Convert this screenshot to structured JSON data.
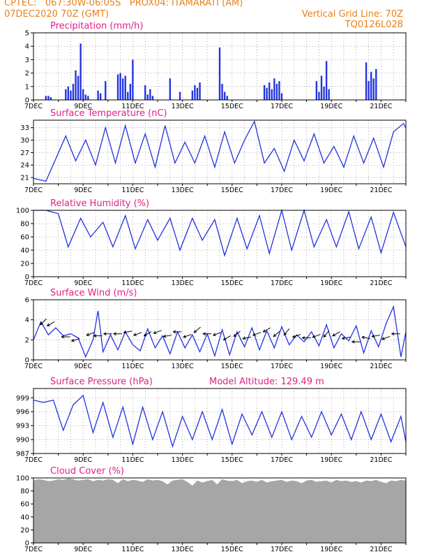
{
  "header": {
    "line1": "CPTEC:   067:30W-06:05S   PROX04: ITAMARATI (AM)",
    "line2_left": "07DEC2020 70Z (GMT)",
    "line2_right": "Vertical Grid Line: 70Z",
    "line3_right": "TQ0126L028"
  },
  "colors": {
    "header": "#e8801a",
    "title": "#e0208a",
    "series": "#2233dd",
    "cloud": "#a6a6a6"
  },
  "x_axis": {
    "labels": [
      "7DEC",
      "9DEC",
      "11DEC",
      "13DEC",
      "15DEC",
      "17DEC",
      "19DEC",
      "21DEC"
    ],
    "start_day": 7,
    "end_day": 22
  },
  "chart_data": [
    {
      "id": "precip",
      "type": "bar",
      "title": "Precipitation (mm/h)",
      "ylim": [
        0,
        5
      ],
      "yticks": [
        "0",
        "1",
        "2",
        "3",
        "4",
        "5"
      ],
      "x": [
        7.5,
        7.6,
        7.7,
        8.3,
        8.4,
        8.5,
        8.6,
        8.7,
        8.8,
        8.9,
        9.0,
        9.1,
        9.2,
        9.6,
        9.7,
        9.9,
        10.4,
        10.5,
        10.6,
        10.7,
        10.8,
        10.9,
        11.0,
        11.5,
        11.6,
        11.7,
        11.8,
        12.5,
        12.9,
        13.4,
        13.5,
        13.6,
        13.7,
        14.5,
        14.6,
        14.7,
        14.8,
        16.3,
        16.4,
        16.5,
        16.6,
        16.7,
        16.8,
        16.9,
        17.0,
        18.4,
        18.5,
        18.6,
        18.7,
        18.8,
        18.9,
        20.4,
        20.5,
        20.6,
        20.7,
        20.8
      ],
      "values": [
        0.3,
        0.3,
        0.2,
        0.8,
        1.0,
        0.7,
        1.2,
        2.2,
        1.8,
        4.2,
        0.8,
        0.4,
        0.3,
        0.7,
        0.5,
        1.4,
        1.9,
        2.0,
        1.6,
        1.8,
        0.6,
        1.2,
        3.0,
        1.1,
        0.4,
        0.8,
        0.3,
        1.6,
        0.6,
        0.7,
        1.1,
        0.9,
        1.3,
        3.9,
        1.2,
        0.6,
        0.3,
        1.1,
        0.9,
        1.3,
        0.8,
        1.6,
        1.2,
        1.4,
        0.5,
        1.4,
        0.6,
        1.8,
        1.0,
        2.9,
        0.8,
        2.8,
        1.4,
        2.1,
        1.6,
        2.3
      ]
    },
    {
      "id": "temp",
      "type": "line",
      "title": "Surface Temperature (nC)",
      "ylim": [
        19.5,
        34.8
      ],
      "yticks": [
        "21",
        "24",
        "27",
        "30",
        "33"
      ],
      "ytick_values": [
        21,
        24,
        27,
        30,
        33
      ],
      "x": [
        7.0,
        7.5,
        7.9,
        8.3,
        8.7,
        9.1,
        9.5,
        9.9,
        10.3,
        10.7,
        11.1,
        11.5,
        11.9,
        12.3,
        12.7,
        13.1,
        13.5,
        13.9,
        14.3,
        14.7,
        15.1,
        15.5,
        15.9,
        16.3,
        16.7,
        17.1,
        17.5,
        17.9,
        18.3,
        18.7,
        19.1,
        19.5,
        19.9,
        20.3,
        20.7,
        21.1,
        21.5,
        21.9,
        22.0
      ],
      "values": [
        20.8,
        20.1,
        25.5,
        31.0,
        25.0,
        30.0,
        24.0,
        33.0,
        24.5,
        33.5,
        24.5,
        31.5,
        23.5,
        33.5,
        24.5,
        29.5,
        24.5,
        31.0,
        23.5,
        32.0,
        24.5,
        30.0,
        34.5,
        24.5,
        28.0,
        22.5,
        30.0,
        25.0,
        31.5,
        24.5,
        28.5,
        23.5,
        31.0,
        24.5,
        30.5,
        23.5,
        32.0,
        34.0,
        33.0
      ]
    },
    {
      "id": "rh",
      "type": "line",
      "title": "Relative Humidity (%)",
      "ylim": [
        0,
        100
      ],
      "yticks": [
        "0",
        "20",
        "40",
        "60",
        "80",
        "100"
      ],
      "ytick_values": [
        0,
        20,
        40,
        60,
        80,
        100
      ],
      "x": [
        7.0,
        7.5,
        8.0,
        8.4,
        8.9,
        9.3,
        9.8,
        10.2,
        10.7,
        11.1,
        11.6,
        12.0,
        12.5,
        12.9,
        13.4,
        13.8,
        14.3,
        14.7,
        15.2,
        15.6,
        16.1,
        16.5,
        17.0,
        17.4,
        17.9,
        18.3,
        18.8,
        19.2,
        19.7,
        20.1,
        20.6,
        21.0,
        21.5,
        22.0
      ],
      "values": [
        100,
        100,
        95,
        45,
        88,
        60,
        82,
        45,
        92,
        42,
        86,
        55,
        88,
        40,
        88,
        55,
        86,
        32,
        88,
        42,
        92,
        35,
        100,
        40,
        100,
        45,
        86,
        45,
        98,
        42,
        90,
        36,
        97,
        45
      ]
    },
    {
      "id": "wind",
      "type": "line",
      "title": "Surface Wind (m/s)",
      "ylim": [
        0,
        6
      ],
      "yticks": [
        "0",
        "2",
        "4",
        "6"
      ],
      "ytick_values": [
        0,
        2,
        4,
        6
      ],
      "x": [
        7.0,
        7.3,
        7.6,
        7.9,
        8.2,
        8.5,
        8.8,
        9.1,
        9.4,
        9.6,
        9.8,
        10.1,
        10.4,
        10.7,
        11.0,
        11.3,
        11.6,
        11.9,
        12.2,
        12.5,
        12.8,
        13.1,
        13.4,
        13.7,
        14.0,
        14.3,
        14.6,
        14.9,
        15.2,
        15.5,
        15.8,
        16.1,
        16.4,
        16.7,
        17.0,
        17.3,
        17.6,
        17.9,
        18.2,
        18.5,
        18.8,
        19.1,
        19.4,
        19.7,
        20.0,
        20.3,
        20.6,
        20.9,
        21.2,
        21.5,
        21.8,
        22.0
      ],
      "values": [
        2.0,
        3.8,
        2.5,
        3.2,
        2.4,
        2.6,
        2.2,
        0.3,
        2.0,
        4.9,
        0.8,
        2.5,
        1.0,
        2.8,
        1.5,
        0.9,
        3.1,
        1.2,
        2.4,
        0.6,
        2.8,
        1.2,
        2.5,
        0.8,
        2.6,
        0.4,
        3.0,
        0.5,
        2.8,
        1.3,
        3.2,
        1.0,
        2.9,
        1.2,
        3.3,
        1.5,
        2.5,
        1.8,
        2.8,
        1.4,
        3.5,
        1.2,
        2.6,
        1.9,
        3.4,
        0.7,
        2.9,
        1.3,
        3.6,
        5.3,
        0.3,
        2.8
      ],
      "arrows_x": [
        7.4,
        7.7,
        8.3,
        8.7,
        9.3,
        9.6,
        10.0,
        10.4,
        10.8,
        11.2,
        11.6,
        12.0,
        12.4,
        12.8,
        13.2,
        13.6,
        14.0,
        14.4,
        14.8,
        15.2,
        15.6,
        16.0,
        16.4,
        16.8,
        17.2,
        17.6,
        18.0,
        18.4,
        18.8,
        19.2,
        19.6,
        20.0,
        20.4,
        20.8,
        21.2,
        21.6
      ],
      "arrows_y": [
        3.8,
        3.6,
        2.3,
        2.0,
        2.6,
        2.4,
        2.6,
        2.6,
        2.8,
        2.6,
        2.6,
        2.8,
        2.4,
        2.8,
        2.4,
        3.0,
        2.6,
        2.6,
        2.2,
        2.6,
        2.2,
        2.6,
        3.0,
        2.6,
        2.8,
        2.4,
        2.2,
        2.4,
        2.6,
        2.6,
        2.2,
        1.8,
        2.2,
        2.4,
        2.2,
        2.6
      ],
      "arrows_dir_deg": [
        225,
        210,
        180,
        195,
        200,
        180,
        180,
        180,
        190,
        200,
        210,
        200,
        190,
        180,
        200,
        220,
        180,
        200,
        210,
        220,
        190,
        200,
        210,
        220,
        230,
        200,
        180,
        200,
        230,
        210,
        190,
        180,
        170,
        190,
        200,
        180
      ]
    },
    {
      "id": "press",
      "type": "line",
      "title": "Surface Pressure (hPa)",
      "subtitle": "Model Altitude: 129.49 m",
      "ylim": [
        987,
        1001
      ],
      "yticks": [
        "987",
        "990",
        "993",
        "996",
        "999"
      ],
      "ytick_values": [
        987,
        990,
        993,
        996,
        999
      ],
      "x": [
        7.0,
        7.4,
        7.8,
        8.2,
        8.6,
        9.0,
        9.4,
        9.8,
        10.2,
        10.6,
        11.0,
        11.4,
        11.8,
        12.2,
        12.6,
        13.0,
        13.4,
        13.8,
        14.2,
        14.6,
        15.0,
        15.4,
        15.8,
        16.2,
        16.6,
        17.0,
        17.4,
        17.8,
        18.2,
        18.6,
        19.0,
        19.4,
        19.8,
        20.2,
        20.6,
        21.0,
        21.4,
        21.8,
        22.0
      ],
      "values": [
        998.5,
        998.0,
        998.5,
        992.0,
        997.5,
        999.5,
        991.5,
        998.0,
        990.5,
        997.0,
        989.0,
        997.0,
        990.0,
        996.0,
        988.5,
        995.0,
        990.0,
        996.0,
        990.0,
        996.5,
        989.0,
        995.5,
        991.0,
        996.0,
        990.5,
        996.0,
        990.0,
        995.0,
        990.5,
        996.0,
        991.0,
        995.5,
        990.0,
        996.0,
        990.0,
        995.5,
        989.5,
        995.0,
        989.5
      ]
    },
    {
      "id": "cloud",
      "type": "area",
      "title": "Cloud Cover (%)",
      "ylim": [
        0,
        100
      ],
      "yticks": [
        "0",
        "20",
        "40",
        "60",
        "80",
        "100"
      ],
      "ytick_values": [
        0,
        20,
        40,
        60,
        80,
        100
      ],
      "x": [
        7.0,
        7.2,
        7.4,
        7.6,
        7.8,
        8.0,
        8.2,
        8.4,
        8.6,
        8.8,
        9.0,
        9.2,
        9.4,
        9.6,
        9.8,
        10.0,
        10.2,
        10.4,
        10.6,
        10.8,
        11.0,
        11.2,
        11.4,
        11.6,
        11.8,
        12.0,
        12.2,
        12.4,
        12.6,
        12.8,
        13.0,
        13.2,
        13.4,
        13.6,
        13.8,
        14.0,
        14.2,
        14.4,
        14.6,
        14.8,
        15.0,
        15.2,
        15.4,
        15.6,
        15.8,
        16.0,
        16.2,
        16.4,
        16.6,
        16.8,
        17.0,
        17.2,
        17.4,
        17.6,
        17.8,
        18.0,
        18.2,
        18.4,
        18.6,
        18.8,
        19.0,
        19.2,
        19.4,
        19.6,
        19.8,
        20.0,
        20.2,
        20.4,
        20.6,
        20.8,
        21.0,
        21.2,
        21.4,
        21.6,
        21.8,
        22.0
      ],
      "values": [
        96,
        98,
        97,
        95,
        96,
        98,
        97,
        99,
        98,
        96,
        97,
        98,
        95,
        97,
        96,
        98,
        97,
        92,
        98,
        95,
        97,
        96,
        94,
        98,
        96,
        97,
        95,
        90,
        96,
        97,
        98,
        94,
        88,
        96,
        93,
        95,
        97,
        90,
        98,
        96,
        95,
        97,
        92,
        95,
        96,
        94,
        97,
        93,
        95,
        96,
        97,
        94,
        96,
        95,
        92,
        96,
        97,
        94,
        95,
        96,
        93,
        97,
        95,
        96,
        94,
        95,
        93,
        96,
        95,
        97,
        94,
        92,
        96,
        95,
        97,
        96
      ]
    }
  ]
}
